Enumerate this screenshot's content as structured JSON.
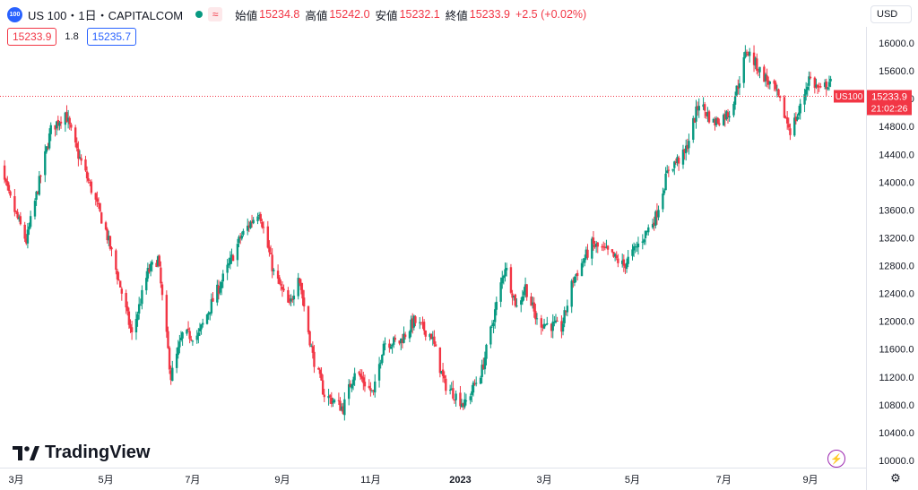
{
  "header": {
    "symbol_badge": "100",
    "symbol": "US 100・1日・CAPITALCOM",
    "open_label": "始値",
    "open": "15234.8",
    "high_label": "高値",
    "high": "15242.0",
    "low_label": "安値",
    "low": "15232.1",
    "close_label": "終値",
    "close": "15233.9",
    "change": "+2.5 (+0.02%)"
  },
  "quote": {
    "sell": "15233.9",
    "spread": "1.8",
    "buy": "15235.7"
  },
  "currency": "USD",
  "last_price_tag": {
    "name": "US100",
    "price": "15233.9",
    "countdown": "21:02:26"
  },
  "branding": {
    "logo_text": "TradingView"
  },
  "colors": {
    "up": "#089981",
    "down": "#f23645",
    "accent": "#2962ff"
  },
  "icons": {
    "market": "market-open-dot",
    "alert": "lightning-icon",
    "settings": "gear-icon"
  },
  "chart_data": {
    "type": "candlestick",
    "symbol": "US 100",
    "interval": "1日",
    "y_axis": {
      "ticks": [
        10000,
        10400,
        10800,
        11200,
        11600,
        12000,
        12400,
        12800,
        13200,
        13600,
        14000,
        14400,
        14800,
        15200,
        15600,
        16000
      ],
      "tick_labels": [
        "10000.0",
        "10400.0",
        "10800.0",
        "11200.0",
        "11600.0",
        "12000.0",
        "12400.0",
        "12800.0",
        "13200.0",
        "13600.0",
        "14000.0",
        "14400.0",
        "14800.0",
        "15200.0",
        "15600.0",
        "16000.0"
      ],
      "range": [
        9960,
        16160
      ],
      "side": "right"
    },
    "x_axis": {
      "labels": [
        "3月",
        "5月",
        "7月",
        "9月",
        "11月",
        "2023",
        "3月",
        "5月",
        "7月",
        "9月"
      ],
      "label_dates": [
        "2022-03-01",
        "2022-05-02",
        "2022-07-01",
        "2022-09-01",
        "2022-11-01",
        "2023-01-02",
        "2023-03-01",
        "2023-05-01",
        "2023-07-03",
        "2023-09-01"
      ],
      "bold": [
        false,
        false,
        false,
        false,
        false,
        true,
        false,
        false,
        false,
        false
      ],
      "range": [
        "2022-02-15",
        "2023-10-10"
      ]
    },
    "last_close": 15233.9,
    "close_path": [
      [
        "2022-02-15",
        14400
      ],
      [
        "2022-02-24",
        13800
      ],
      [
        "2022-03-08",
        13150
      ],
      [
        "2022-03-17",
        14000
      ],
      [
        "2022-03-25",
        14750
      ],
      [
        "2022-04-04",
        15000
      ],
      [
        "2022-04-11",
        14500
      ],
      [
        "2022-04-22",
        13900
      ],
      [
        "2022-05-02",
        13300
      ],
      [
        "2022-05-12",
        12500
      ],
      [
        "2022-05-20",
        11800
      ],
      [
        "2022-05-31",
        12700
      ],
      [
        "2022-06-07",
        12900
      ],
      [
        "2022-06-16",
        11200
      ],
      [
        "2022-06-24",
        11800
      ],
      [
        "2022-07-05",
        11800
      ],
      [
        "2022-07-15",
        12300
      ],
      [
        "2022-07-26",
        12800
      ],
      [
        "2022-08-03",
        13200
      ],
      [
        "2022-08-16",
        13600
      ],
      [
        "2022-08-26",
        12700
      ],
      [
        "2022-09-06",
        12200
      ],
      [
        "2022-09-12",
        12700
      ],
      [
        "2022-09-22",
        11500
      ],
      [
        "2022-09-30",
        10950
      ],
      [
        "2022-10-13",
        10750
      ],
      [
        "2022-10-21",
        11300
      ],
      [
        "2022-11-03",
        10950
      ],
      [
        "2022-11-10",
        11700
      ],
      [
        "2022-11-21",
        11700
      ],
      [
        "2022-12-01",
        12000
      ],
      [
        "2022-12-13",
        11800
      ],
      [
        "2022-12-22",
        11100
      ],
      [
        "2023-01-05",
        10800
      ],
      [
        "2023-01-17",
        11300
      ],
      [
        "2023-02-02",
        12800
      ],
      [
        "2023-02-10",
        12200
      ],
      [
        "2023-02-16",
        12500
      ],
      [
        "2023-02-24",
        12000
      ],
      [
        "2023-03-13",
        11900
      ],
      [
        "2023-03-21",
        12600
      ],
      [
        "2023-04-03",
        13100
      ],
      [
        "2023-04-13",
        13000
      ],
      [
        "2023-04-25",
        12800
      ],
      [
        "2023-05-05",
        13100
      ],
      [
        "2023-05-17",
        13500
      ],
      [
        "2023-05-26",
        14200
      ],
      [
        "2023-06-06",
        14400
      ],
      [
        "2023-06-16",
        15150
      ],
      [
        "2023-06-26",
        14850
      ],
      [
        "2023-07-07",
        15000
      ],
      [
        "2023-07-13",
        15400
      ],
      [
        "2023-07-19",
        15900
      ],
      [
        "2023-07-28",
        15600
      ],
      [
        "2023-08-08",
        15300
      ],
      [
        "2023-08-18",
        14750
      ],
      [
        "2023-08-24",
        15000
      ],
      [
        "2023-08-31",
        15500
      ],
      [
        "2023-09-08",
        15300
      ],
      [
        "2023-09-14",
        15450
      ],
      [
        "2023-09-20",
        15233.9
      ]
    ]
  }
}
